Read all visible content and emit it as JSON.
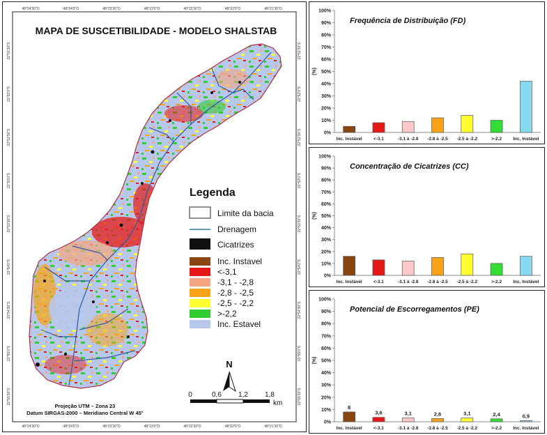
{
  "map": {
    "title": "MAPA DE SUSCETIBILIDADE - MODELO SHALSTAB",
    "top_coords": [
      "48°24'30\"O",
      "48°24'0\"O",
      "48°23'30\"O",
      "48°23'0\"O",
      "48°22'30\"O",
      "48°22'0\"O",
      "48°21'30\"O"
    ],
    "bottom_coords": [
      "48°24'30\"O",
      "48°24'0\"O",
      "48°23'30\"O",
      "48°23'0\"O",
      "48°22'30\"O",
      "48°22'0\"O",
      "48°21'30\"O"
    ],
    "left_coords": [
      "22°51'30\"S",
      "22°52'0\"S",
      "22°52'30\"S",
      "22°53'0\"S",
      "22°53'30\"S",
      "22°54'0\"S",
      "22°54'30\"S",
      "22°55'0\"S",
      "22°55'30\"S"
    ],
    "right_coords": [
      "22°51'30\"S",
      "22°52'0\"S",
      "22°52'30\"S",
      "22°53'0\"S",
      "22°53'30\"S",
      "22°54'0\"S",
      "22°54'30\"S",
      "22°55'0\"S",
      "22°55'30\"S"
    ],
    "legend": {
      "title": "Legenda",
      "boundary": "Limite da bacia",
      "drainage": "Drenagem",
      "scars": "Cicatrizes",
      "classes": [
        {
          "label": "Inc. Instavel",
          "color": "#8b4513"
        },
        {
          "label": "<-3,1",
          "color": "#e61919"
        },
        {
          "label": "-3,1 - -2,8",
          "color": "#f4a582"
        },
        {
          "label": "-2,8 - -2,5",
          "color": "#f7a318"
        },
        {
          "label": "-2,5 - -2,2",
          "color": "#ffff33"
        },
        {
          "label": ">-2,2",
          "color": "#33cc33"
        },
        {
          "label": "Inc. Estavel",
          "color": "#b8c8ec"
        }
      ]
    },
    "north": "N",
    "scale_labels": [
      "0",
      "0,6",
      "1,2",
      "1,8"
    ],
    "scale_unit": "km",
    "projection_lines": [
      "Projeção UTM – Zona 23",
      "Datum SIRGAS-2000 – Meridiano Central W 45°"
    ]
  },
  "colors": {
    "boundary": "#b03040",
    "drainage": "#2a5aa0",
    "scar": "#111111"
  },
  "chart_data": [
    {
      "type": "bar",
      "title": "Frequência de Distribuição  (FD)",
      "ylabel": "(%)",
      "ylim": [
        0,
        100
      ],
      "yticks": [
        "0%",
        "10%",
        "20%",
        "30%",
        "40%",
        "50%",
        "60%",
        "70%",
        "80%",
        "90%",
        "100%"
      ],
      "categories": [
        "Inc. Instável",
        "<-3.1",
        "-3.1 à -2.8",
        "-2.8 à -2.5",
        "-2.5 à -2.2",
        ">-2.2",
        "Inc. Instável"
      ],
      "values": [
        5,
        8,
        9,
        12,
        14,
        10,
        42
      ],
      "colors": [
        "#8b4513",
        "#e61919",
        "#f9c8c8",
        "#f7a318",
        "#ffff33",
        "#33dd33",
        "#87d8f0"
      ],
      "data_labels": []
    },
    {
      "type": "bar",
      "title": "Concentração de Cicatrizes (CC)",
      "ylabel": "(%)",
      "ylim": [
        0,
        100
      ],
      "yticks": [
        "0%",
        "10%",
        "20%",
        "30%",
        "40%",
        "50%",
        "60%",
        "70%",
        "80%",
        "90%",
        "100%"
      ],
      "categories": [
        "Inc. Instável",
        "<-3.1",
        "-3.1 à -2.8",
        "-2.8 à -2.5",
        "-2.5 à -2.2",
        ">-2.2",
        "Inc. Instável"
      ],
      "values": [
        16,
        13,
        12,
        15,
        18,
        10,
        16
      ],
      "colors": [
        "#8b4513",
        "#e61919",
        "#f9c8c8",
        "#f7a318",
        "#ffff33",
        "#33dd33",
        "#87d8f0"
      ],
      "data_labels": []
    },
    {
      "type": "bar",
      "title": "Potencial de Escorregamentos (PE)",
      "ylabel": "(%)",
      "ylim": [
        0,
        100
      ],
      "yticks": [
        "0%",
        "10%",
        "20%",
        "30%",
        "40%",
        "50%",
        "60%",
        "70%",
        "80%",
        "90%",
        "100%"
      ],
      "categories": [
        "Inc. Instável",
        "<-3.1",
        "-3.1 à -2.8",
        "-2.8 à -2.5",
        "-2.5 à -2.2",
        ">-2.2",
        "Inc. Instável"
      ],
      "values": [
        8,
        3.6,
        3.1,
        2.6,
        3.1,
        2.4,
        0.9
      ],
      "colors": [
        "#8b4513",
        "#e61919",
        "#f9c8c8",
        "#f7a318",
        "#ffff33",
        "#33dd33",
        "#87d8f0"
      ],
      "data_labels": [
        "8",
        "3,6",
        "3,1",
        "2,6",
        "3,1",
        "2,4",
        "0,9"
      ]
    }
  ]
}
